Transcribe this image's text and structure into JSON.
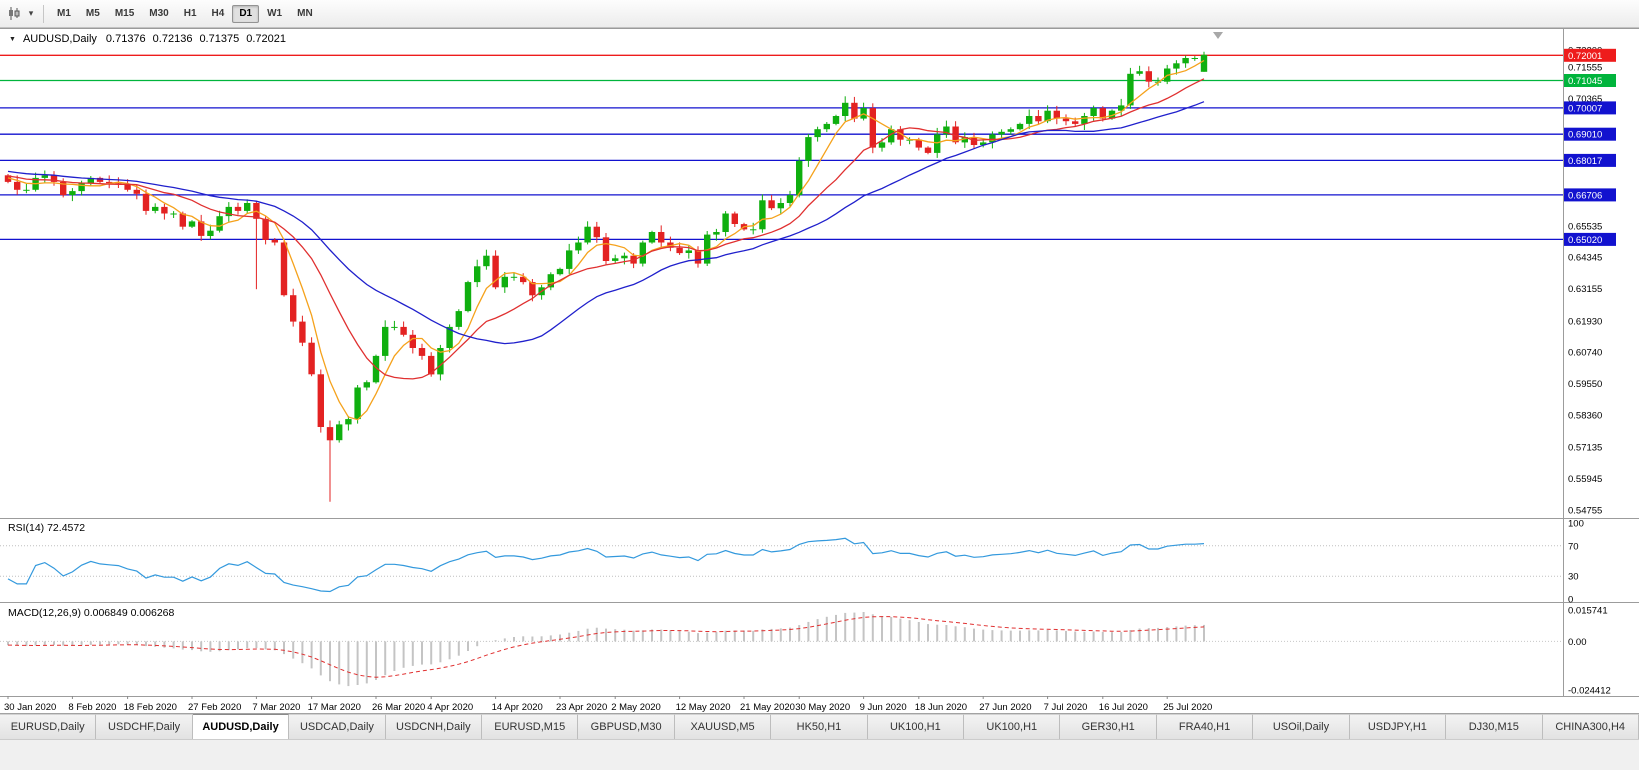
{
  "toolbar": {
    "timeframes": [
      "M1",
      "M5",
      "M15",
      "M30",
      "H1",
      "H4",
      "D1",
      "W1",
      "MN"
    ],
    "selected_timeframe": "D1"
  },
  "legend": {
    "symbol": "AUDUSD,Daily",
    "open": "0.71376",
    "high": "0.72136",
    "low": "0.71375",
    "close": "0.72021"
  },
  "panes": {
    "rsi_label": "RSI(14) 72.4572",
    "macd_label": "MACD(12,26,9) 0.006849 0.006268"
  },
  "price_axis": {
    "ticks": [
      "0.72200",
      "0.71555",
      "0.70365",
      "0.65535",
      "0.64345",
      "0.63155",
      "0.61930",
      "0.60740",
      "0.59550",
      "0.58360",
      "0.57135",
      "0.55945",
      "0.54755"
    ]
  },
  "hlines": [
    {
      "value": 0.72001,
      "label": "0.72001",
      "color": "#ee1c1c"
    },
    {
      "value": 0.71045,
      "label": "0.71045",
      "color": "#00b43c"
    },
    {
      "value": 0.70007,
      "label": "0.70007",
      "color": "#1212cf"
    },
    {
      "value": 0.6901,
      "label": "0.69010",
      "color": "#1212cf"
    },
    {
      "value": 0.68017,
      "label": "0.68017",
      "color": "#1212cf"
    },
    {
      "value": 0.66706,
      "label": "0.66706",
      "color": "#1212cf"
    },
    {
      "value": 0.6502,
      "label": "0.65020",
      "color": "#1212cf"
    }
  ],
  "rsi_axis": {
    "ticks": [
      {
        "v": 100,
        "label": "100"
      },
      {
        "v": 70,
        "label": "70"
      },
      {
        "v": 30,
        "label": "30"
      },
      {
        "v": 0,
        "label": "0"
      }
    ],
    "levels": [
      70,
      30
    ]
  },
  "macd_axis": {
    "ticks": [
      {
        "v": 0.015741,
        "label": "0.015741"
      },
      {
        "v": 0,
        "label": "0.00"
      },
      {
        "v": -0.024412,
        "label": "-0.024412"
      }
    ]
  },
  "x_axis": {
    "labels": [
      "30 Jan 2020",
      "8 Feb 2020",
      "18 Feb 2020",
      "27 Feb 2020",
      "7 Mar 2020",
      "17 Mar 2020",
      "26 Mar 2020",
      "4 Apr 2020",
      "14 Apr 2020",
      "23 Apr 2020",
      "2 May 2020",
      "12 May 2020",
      "21 May 2020",
      "30 May 2020",
      "9 Jun 2020",
      "18 Jun 2020",
      "27 Jun 2020",
      "7 Jul 2020",
      "16 Jul 2020",
      "25 Jul 2020"
    ]
  },
  "tabs": [
    {
      "label": "EURUSD,Daily",
      "active": false
    },
    {
      "label": "USDCHF,Daily",
      "active": false
    },
    {
      "label": "AUDUSD,Daily",
      "active": true
    },
    {
      "label": "USDCAD,Daily",
      "active": false
    },
    {
      "label": "USDCNH,Daily",
      "active": false
    },
    {
      "label": "EURUSD,M15",
      "active": false
    },
    {
      "label": "GBPUSD,M30",
      "active": false
    },
    {
      "label": "XAUUSD,M5",
      "active": false
    },
    {
      "label": "HK50,H1",
      "active": false
    },
    {
      "label": "UK100,H1",
      "active": false
    },
    {
      "label": "UK100,H1",
      "active": false
    },
    {
      "label": "GER30,H1",
      "active": false
    },
    {
      "label": "FRA40,H1",
      "active": false
    },
    {
      "label": "USOil,Daily",
      "active": false
    },
    {
      "label": "USDJPY,H1",
      "active": false
    },
    {
      "label": "DJ30,M15",
      "active": false
    },
    {
      "label": "CHINA300,H4",
      "active": false
    }
  ],
  "chart_data": {
    "type": "candlestick",
    "symbol": "AUDUSD",
    "timeframe": "Daily",
    "current_bar": {
      "open": 0.71376,
      "high": 0.72136,
      "low": 0.71375,
      "close": 0.72021
    },
    "ylim": [
      0.5445,
      0.73
    ],
    "macd_ylim": [
      -0.024412,
      0.015741
    ],
    "first_open": 0.6745,
    "closes": [
      0.672,
      0.669,
      0.669,
      0.6735,
      0.6745,
      0.672,
      0.667,
      0.6685,
      0.6715,
      0.6735,
      0.672,
      0.6715,
      0.671,
      0.669,
      0.6675,
      0.661,
      0.6625,
      0.66,
      0.66,
      0.655,
      0.657,
      0.6515,
      0.6535,
      0.659,
      0.6625,
      0.661,
      0.664,
      0.658,
      0.65,
      0.649,
      0.629,
      0.619,
      0.611,
      0.599,
      0.579,
      0.574,
      0.58,
      0.582,
      0.594,
      0.596,
      0.606,
      0.617,
      0.617,
      0.614,
      0.609,
      0.606,
      0.599,
      0.609,
      0.617,
      0.623,
      0.634,
      0.64,
      0.644,
      0.632,
      0.636,
      0.636,
      0.634,
      0.629,
      0.632,
      0.637,
      0.639,
      0.646,
      0.649,
      0.655,
      0.651,
      0.642,
      0.643,
      0.644,
      0.641,
      0.649,
      0.653,
      0.649,
      0.647,
      0.645,
      0.646,
      0.641,
      0.652,
      0.653,
      0.66,
      0.656,
      0.654,
      0.654,
      0.665,
      0.662,
      0.664,
      0.667,
      0.68,
      0.689,
      0.692,
      0.694,
      0.697,
      0.702,
      0.696,
      0.7,
      0.685,
      0.687,
      0.692,
      0.688,
      0.688,
      0.685,
      0.683,
      0.69,
      0.693,
      0.687,
      0.689,
      0.686,
      0.687,
      0.69,
      0.691,
      0.692,
      0.694,
      0.697,
      0.695,
      0.699,
      0.696,
      0.695,
      0.694,
      0.697,
      0.7,
      0.696,
      0.699,
      0.701,
      0.713,
      0.714,
      0.71,
      0.71,
      0.715,
      0.717,
      0.719,
      0.719,
      0.7202
    ],
    "special_candles": [
      {
        "index": 27,
        "ohlc": [
          0.664,
          0.6648,
          0.6313,
          0.658
        ]
      },
      {
        "index": 35,
        "ohlc": [
          0.579,
          0.5815,
          0.5507,
          0.574
        ]
      },
      {
        "index": 130,
        "ohlc": [
          0.71376,
          0.72136,
          0.71375,
          0.72021
        ]
      }
    ],
    "pre_history": {
      "count": 60,
      "start": 0.6895,
      "end": 0.6728,
      "wiggle": 0.0012
    },
    "moving_averages": [
      {
        "period": 5,
        "color": "#f5a21c"
      },
      {
        "period": 12,
        "color": "#e03030"
      },
      {
        "period": 25,
        "color": "#2020cc"
      }
    ],
    "indicators": {
      "rsi": {
        "period": 14,
        "current": 72.4572
      },
      "macd": {
        "fast": 12,
        "slow": 26,
        "signal": 9,
        "current": 0.006849,
        "signal_current": 0.006268
      }
    },
    "colors": {
      "up": "#0faf0f",
      "down": "#e32222",
      "rsi": "#3399dd",
      "macd_hist": "#c4c4c4",
      "macd_signal": "#e03030"
    }
  }
}
